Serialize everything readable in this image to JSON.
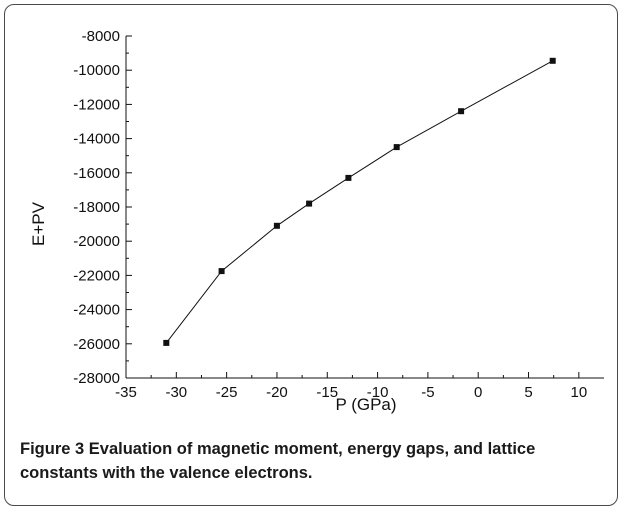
{
  "chart_data": {
    "type": "line",
    "title": "",
    "xlabel": "P (GPa)",
    "ylabel": "E+PV",
    "xlim": [
      -35,
      12.5
    ],
    "ylim": [
      -28000,
      -8000
    ],
    "xticks": [
      -35,
      -30,
      -25,
      -20,
      -15,
      -10,
      -5,
      0,
      5,
      10
    ],
    "yticks": [
      -28000,
      -26000,
      -24000,
      -22000,
      -20000,
      -18000,
      -16000,
      -14000,
      -12000,
      -10000,
      -8000
    ],
    "xtick_labels": [
      "-35",
      "-30",
      "-25",
      "-20",
      "-15",
      "-10",
      "-5",
      "0",
      "5",
      "10"
    ],
    "ytick_labels": [
      "-28000",
      "-26000",
      "-24000",
      "-22000",
      "-20000",
      "-18000",
      "-16000",
      "-14000",
      "-12000",
      "-10000",
      "-8000"
    ],
    "grid": false,
    "marker": "square",
    "series": [
      {
        "x": [
          -31,
          -25.5,
          -20,
          -16.8,
          -12.9,
          -8.1,
          -1.7,
          7.4
        ],
        "y": [
          -25950,
          -21750,
          -19100,
          -17800,
          -16300,
          -14500,
          -12400,
          -9450
        ]
      }
    ]
  },
  "caption": {
    "label": "Figure 3",
    "text": " Evaluation of magnetic moment, energy gaps, and lattice constants with the valence electrons."
  }
}
